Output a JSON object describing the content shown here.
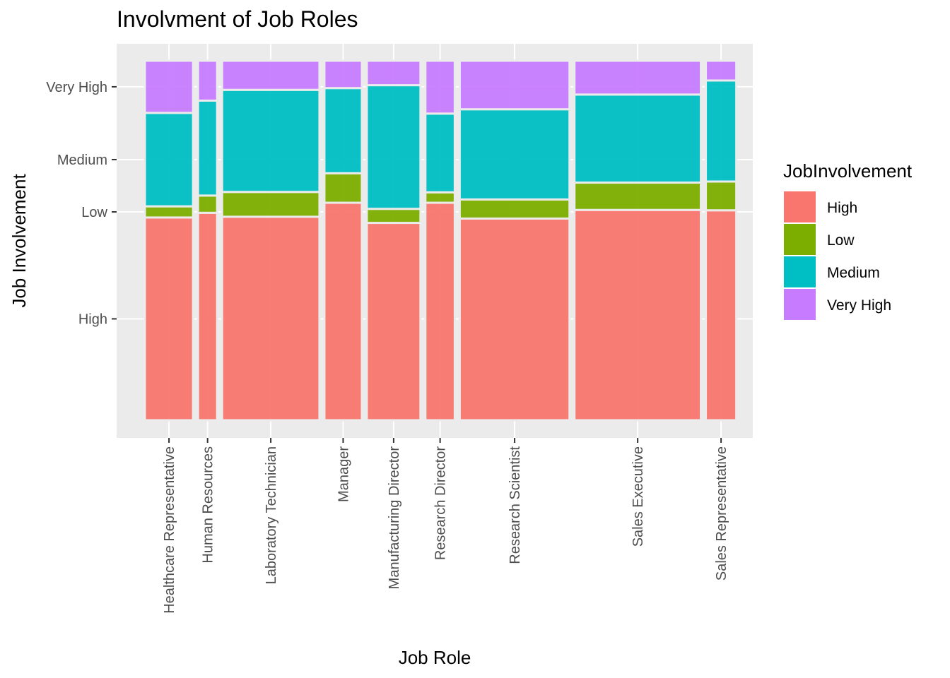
{
  "chart_data": {
    "type": "mosaic",
    "title": "Involvment of Job Roles",
    "xlabel": "Job Role",
    "ylabel": "Job Involvement",
    "y_tick_labels": [
      "High",
      "Low",
      "Medium",
      "Very High"
    ],
    "categories": [
      "Healthcare Representative",
      "Human Resources",
      "Laboratory Technician",
      "Manager",
      "Manufacturing Director",
      "Research Director",
      "Research Scientist",
      "Sales Executive",
      "Sales Representative"
    ],
    "category_share": [
      0.0892,
      0.0354,
      0.1803,
      0.0694,
      0.0993,
      0.0544,
      0.2033,
      0.2341,
      0.0564
    ],
    "legend_title": "JobInvolvement",
    "series": [
      {
        "name": "High",
        "color": "#F8766D",
        "values": [
          0.564,
          0.577,
          0.566,
          0.605,
          0.549,
          0.605,
          0.561,
          0.585,
          0.584
        ]
      },
      {
        "name": "Low",
        "color": "#7CAE00",
        "values": [
          0.031,
          0.048,
          0.069,
          0.082,
          0.039,
          0.029,
          0.053,
          0.076,
          0.08
        ]
      },
      {
        "name": "Medium",
        "color": "#00BFC4",
        "values": [
          0.26,
          0.264,
          0.284,
          0.237,
          0.344,
          0.219,
          0.251,
          0.245,
          0.281
        ]
      },
      {
        "name": "Very High",
        "color": "#C77CFF",
        "values": [
          0.145,
          0.111,
          0.081,
          0.076,
          0.068,
          0.147,
          0.135,
          0.094,
          0.055
        ]
      }
    ],
    "ylim": [
      0,
      1
    ],
    "grid": true,
    "legend_position": "right"
  }
}
